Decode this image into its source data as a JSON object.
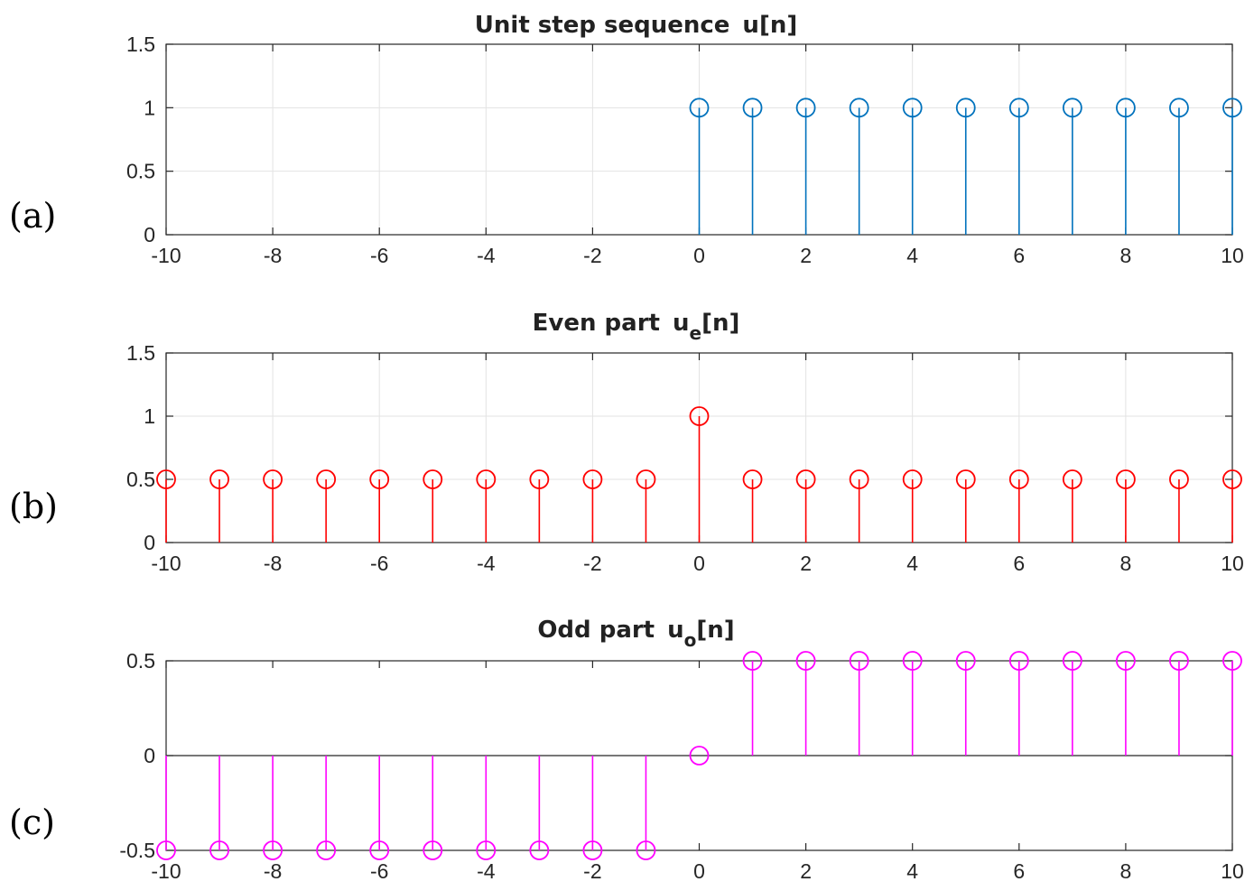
{
  "chart_data": [
    {
      "type": "stem",
      "panel_label": "(a)",
      "title": "Unit step sequence",
      "title_symbol": "u",
      "title_subscript": "",
      "title_suffix": "[n]",
      "color": "#0072BD",
      "xlim": [
        -10,
        10
      ],
      "ylim": [
        0,
        1.5
      ],
      "xticks": [
        -10,
        -8,
        -6,
        -4,
        -2,
        0,
        2,
        4,
        6,
        8,
        10
      ],
      "yticks": [
        0,
        0.5,
        1,
        1.5
      ],
      "ytick_labels": [
        "0",
        "0.5",
        "1",
        "1.5"
      ],
      "grid": true,
      "x": [
        0,
        1,
        2,
        3,
        4,
        5,
        6,
        7,
        8,
        9,
        10
      ],
      "y": [
        1,
        1,
        1,
        1,
        1,
        1,
        1,
        1,
        1,
        1,
        1
      ]
    },
    {
      "type": "stem",
      "panel_label": "(b)",
      "title": "Even part",
      "title_symbol": "u",
      "title_subscript": "e",
      "title_suffix": "[n]",
      "color": "#FF0000",
      "xlim": [
        -10,
        10
      ],
      "ylim": [
        0,
        1.5
      ],
      "xticks": [
        -10,
        -8,
        -6,
        -4,
        -2,
        0,
        2,
        4,
        6,
        8,
        10
      ],
      "yticks": [
        0,
        0.5,
        1,
        1.5
      ],
      "ytick_labels": [
        "0",
        "0.5",
        "1",
        "1.5"
      ],
      "grid": true,
      "x": [
        -10,
        -9,
        -8,
        -7,
        -6,
        -5,
        -4,
        -3,
        -2,
        -1,
        0,
        1,
        2,
        3,
        4,
        5,
        6,
        7,
        8,
        9,
        10
      ],
      "y": [
        0.5,
        0.5,
        0.5,
        0.5,
        0.5,
        0.5,
        0.5,
        0.5,
        0.5,
        0.5,
        1,
        0.5,
        0.5,
        0.5,
        0.5,
        0.5,
        0.5,
        0.5,
        0.5,
        0.5,
        0.5
      ]
    },
    {
      "type": "stem",
      "panel_label": "(c)",
      "title": "Odd part",
      "title_symbol": "u",
      "title_subscript": "o",
      "title_suffix": "[n]",
      "color": "#FF00FF",
      "xlim": [
        -10,
        10
      ],
      "ylim": [
        -0.5,
        0.5
      ],
      "xticks": [
        -10,
        -8,
        -6,
        -4,
        -2,
        0,
        2,
        4,
        6,
        8,
        10
      ],
      "yticks": [
        -0.5,
        0,
        0.5
      ],
      "ytick_labels": [
        "-0.5",
        "0",
        "0.5"
      ],
      "grid": false,
      "x": [
        -10,
        -9,
        -8,
        -7,
        -6,
        -5,
        -4,
        -3,
        -2,
        -1,
        0,
        1,
        2,
        3,
        4,
        5,
        6,
        7,
        8,
        9,
        10
      ],
      "y": [
        -0.5,
        -0.5,
        -0.5,
        -0.5,
        -0.5,
        -0.5,
        -0.5,
        -0.5,
        -0.5,
        -0.5,
        0,
        0.5,
        0.5,
        0.5,
        0.5,
        0.5,
        0.5,
        0.5,
        0.5,
        0.5,
        0.5
      ]
    }
  ]
}
